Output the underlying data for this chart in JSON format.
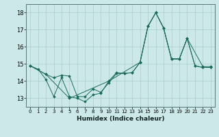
{
  "xlabel": "Humidex (Indice chaleur)",
  "ylabel": "",
  "bg_color": "#cce8e8",
  "grid_color": "#aacccc",
  "line_color": "#1a6b5a",
  "xlim": [
    -0.5,
    23.5
  ],
  "ylim": [
    12.5,
    18.5
  ],
  "yticks": [
    13,
    14,
    15,
    16,
    17,
    18
  ],
  "xticks": [
    0,
    1,
    2,
    3,
    4,
    5,
    6,
    7,
    8,
    9,
    10,
    11,
    12,
    13,
    14,
    15,
    16,
    17,
    18,
    19,
    20,
    21,
    22,
    23
  ],
  "line1_x": [
    0,
    1,
    2,
    3,
    4,
    5,
    6,
    7,
    8,
    9,
    10,
    11,
    12,
    13,
    14,
    15,
    16,
    17,
    18,
    19,
    20,
    21,
    22,
    23
  ],
  "line1_y": [
    14.9,
    14.7,
    14.1,
    13.1,
    14.2,
    13.1,
    13.0,
    12.8,
    13.2,
    13.3,
    14.0,
    14.5,
    14.45,
    14.5,
    15.1,
    17.2,
    18.0,
    17.1,
    15.3,
    15.3,
    16.5,
    14.9,
    14.8,
    14.8
  ],
  "line2_x": [
    0,
    2,
    3,
    4,
    5,
    6,
    7,
    8,
    9,
    10,
    11,
    12,
    13,
    14,
    15,
    16,
    17,
    18,
    19,
    20,
    21,
    22,
    23
  ],
  "line2_y": [
    14.9,
    14.4,
    14.2,
    14.35,
    14.3,
    13.1,
    13.1,
    13.55,
    13.35,
    13.9,
    14.45,
    14.45,
    14.5,
    15.1,
    17.2,
    18.0,
    17.1,
    15.3,
    15.3,
    16.5,
    14.9,
    14.8,
    14.8
  ],
  "line3_x": [
    0,
    2,
    5,
    10,
    14,
    15,
    16,
    17,
    18,
    19,
    20,
    22,
    23
  ],
  "line3_y": [
    14.9,
    14.4,
    13.0,
    14.0,
    15.1,
    17.2,
    18.0,
    17.1,
    15.3,
    15.3,
    16.5,
    14.85,
    14.85
  ]
}
